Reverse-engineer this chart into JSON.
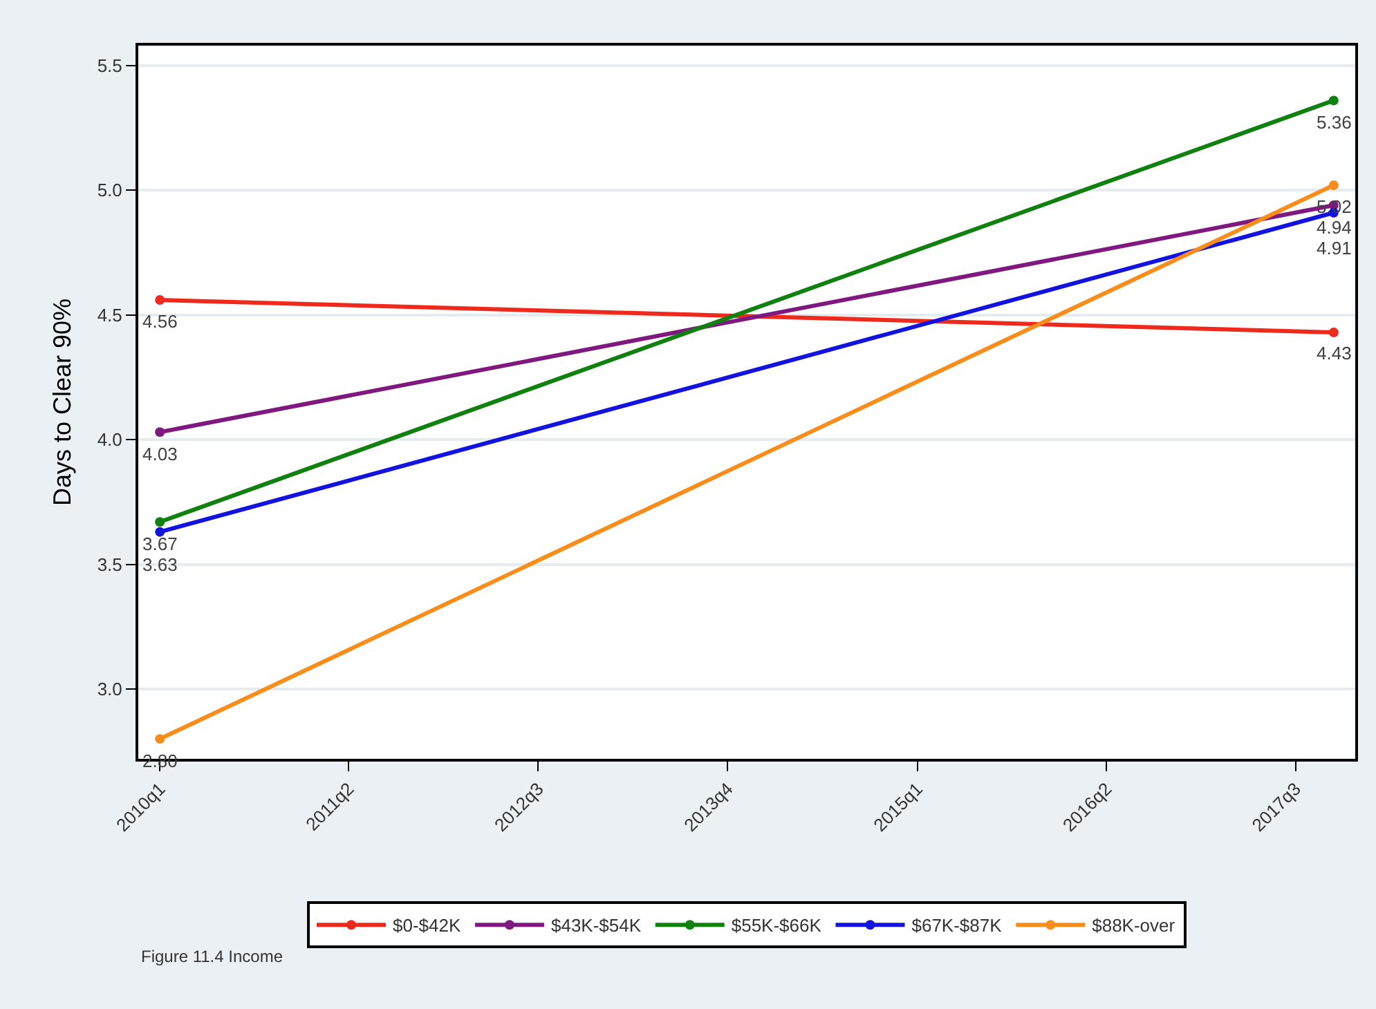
{
  "chart_data": {
    "type": "line",
    "ylabel": "Days to Clear 90%",
    "x": [
      "2010-01-01",
      "2017-10-01"
    ],
    "series": [
      {
        "name": "$0-$42K",
        "color": "#ee2a1c",
        "values": [
          4.56,
          4.43
        ],
        "value_labels": [
          "4.56",
          "4.43"
        ]
      },
      {
        "name": "$43K-$54K",
        "color": "#80197f",
        "values": [
          4.03,
          4.94
        ],
        "value_labels": [
          "4.03",
          "4.94"
        ]
      },
      {
        "name": "$55K-$66K",
        "color": "#10800f",
        "values": [
          3.67,
          5.36
        ],
        "value_labels": [
          "3.67",
          "5.36"
        ]
      },
      {
        "name": "$67K-$87K",
        "color": "#1313e0",
        "values": [
          3.63,
          4.91
        ],
        "value_labels": [
          "3.63",
          "4.91"
        ]
      },
      {
        "name": "$88K-over",
        "color": "#f88d1c",
        "values": [
          2.8,
          5.02
        ],
        "value_labels": [
          "2.80",
          "5.02"
        ]
      }
    ],
    "xlim": [
      "2009-11-10",
      "2017-11-22"
    ],
    "xticks": [
      {
        "value": "2010-01-01",
        "label": "2010q1"
      },
      {
        "value": "2011-04-01",
        "label": "2011q2"
      },
      {
        "value": "2012-07-01",
        "label": "2012q3"
      },
      {
        "value": "2013-10-01",
        "label": "2013q4"
      },
      {
        "value": "2015-01-01",
        "label": "2015q1"
      },
      {
        "value": "2016-04-01",
        "label": "2016q2"
      },
      {
        "value": "2017-07-01",
        "label": "2017q3"
      }
    ],
    "ylim": [
      2.72,
      5.58
    ],
    "yticks": [
      {
        "value": 3,
        "label": "3.0"
      },
      3.5,
      {
        "value": 4,
        "label": "4.0"
      },
      4.5,
      {
        "value": 5,
        "label": "5.0"
      },
      5.5
    ],
    "grid": "y",
    "legend": "bottom",
    "marker": "circle",
    "line_style": "solid",
    "annotations": [
      "Figure 11.4 Income"
    ]
  }
}
